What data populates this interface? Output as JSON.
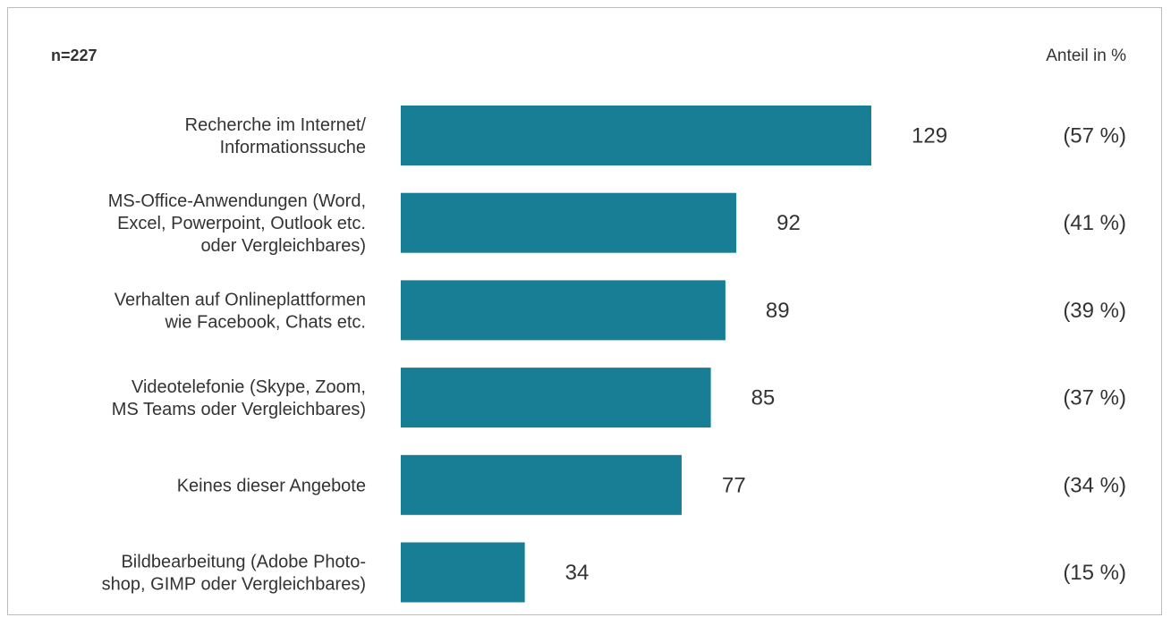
{
  "chart_data": {
    "type": "bar",
    "orientation": "horizontal",
    "sample_label": "n=227",
    "unit_label": "Anteil in %",
    "bar_color": "#177e96",
    "xlim": [
      0,
      129
    ],
    "categories": [
      [
        "Recherche im Internet/",
        "Informationssuche"
      ],
      [
        "MS-Office-Anwendungen (Word,",
        "Excel, Powerpoint, Outlook etc.",
        "oder Vergleichbares)"
      ],
      [
        "Verhalten auf Onlineplattformen",
        "wie Facebook, Chats etc."
      ],
      [
        "Videotelefonie (Skype, Zoom,",
        "MS Teams oder Vergleichbares)"
      ],
      [
        "Keines dieser Angebote"
      ],
      [
        "Bildbearbeitung (Adobe Photo-",
        "shop, GIMP oder Vergleichbares)"
      ]
    ],
    "values": [
      129,
      92,
      89,
      85,
      77,
      34
    ],
    "percent_labels": [
      "(57 %)",
      "(41 %)",
      "(39 %)",
      "(37 %)",
      "(34 %)",
      "(15 %)"
    ]
  }
}
